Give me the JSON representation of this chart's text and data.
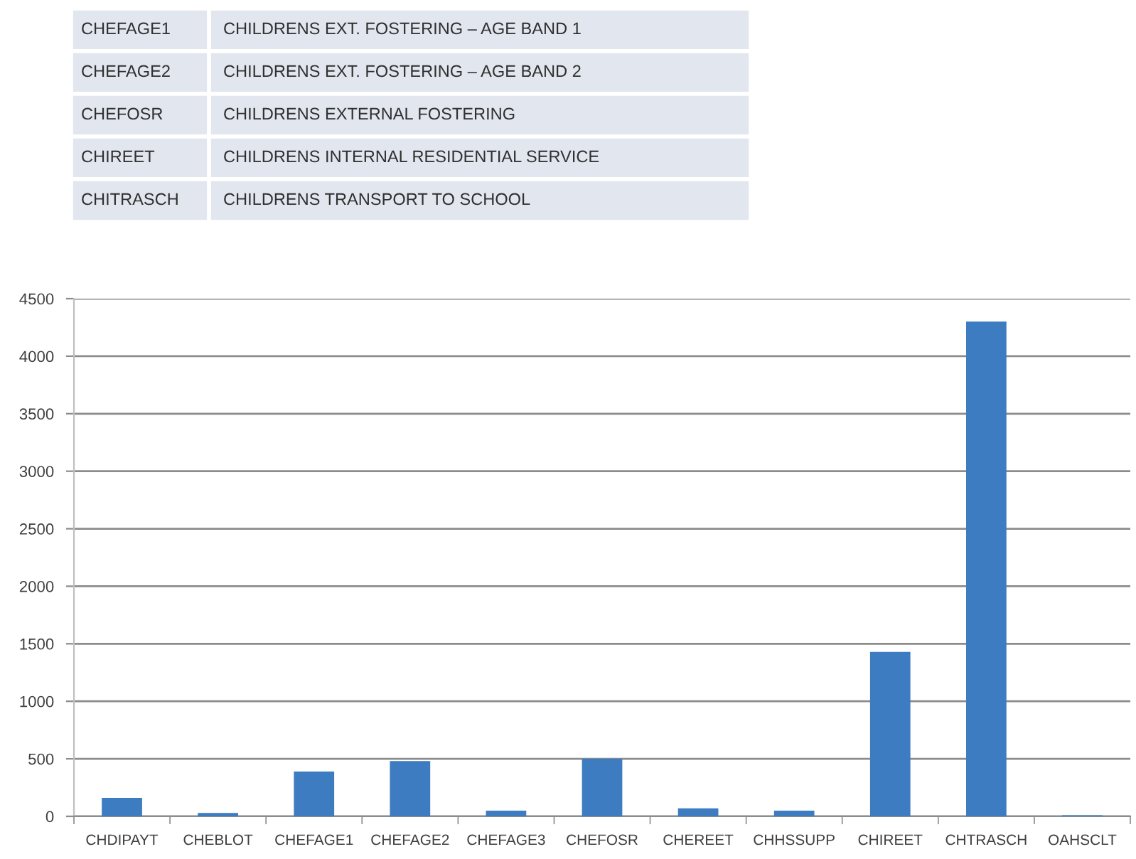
{
  "chart_data": {
    "type": "bar",
    "categories": [
      "CHDIPAYT",
      "CHEBLOT",
      "CHEFAGE1",
      "CHEFAGE2",
      "CHEFAGE3",
      "CHEFOSR",
      "CHEREET",
      "CHHSSUPP",
      "CHIREET",
      "CHTRASCH",
      "OAHSCLT"
    ],
    "values": [
      160,
      30,
      390,
      480,
      50,
      500,
      70,
      50,
      1430,
      4300,
      10
    ],
    "color": "#3d7cc0",
    "ylim": [
      0,
      4500
    ],
    "yticks": [
      0,
      500,
      1000,
      1500,
      2000,
      2500,
      3000,
      3500,
      4000,
      4500
    ],
    "grid": "y",
    "annotations": [
      "CHEFAGE1",
      "CHILDRENS EXT. FOSTERING – AGE BAND 1",
      "CHEFAGE2",
      "CHILDRENS EXT. FOSTERING – AGE BAND 2",
      "CHEFOSR",
      "CHILDRENS EXTERNAL FOSTERING",
      "CHIREET",
      "CHILDRENS INTERNAL RESIDENTIAL SERVICE",
      "CHITRASCH",
      "CHILDRENS TRANSPORT TO SCHOOL"
    ]
  }
}
